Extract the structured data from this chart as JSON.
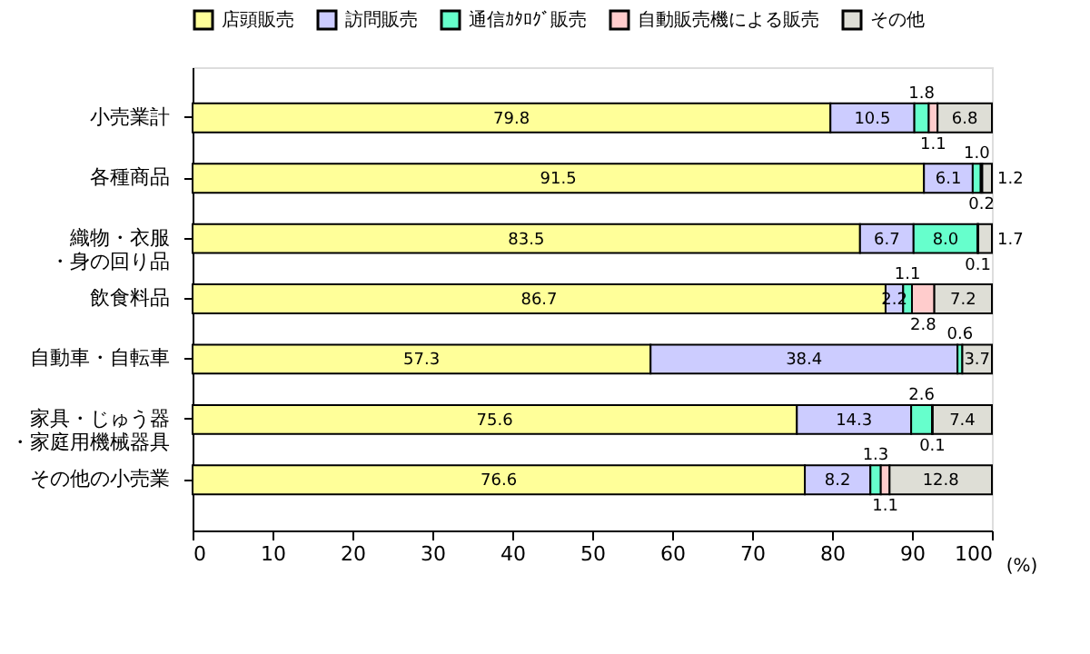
{
  "chart_data": {
    "type": "bar",
    "orientation": "horizontal",
    "stacked": true,
    "xlabel": "(%)",
    "categories": [
      "小売業計",
      "各種商品",
      "織物・衣服・身の回り品",
      "飲食料品",
      "自動車・自転車",
      "家具・じゅう器・家庭用機械器具",
      "その他の小売業"
    ],
    "series": [
      {
        "name": "店頭販売",
        "color": "#ffff99",
        "values": [
          79.8,
          91.5,
          83.5,
          86.7,
          57.3,
          75.6,
          76.6
        ],
        "value_labels": [
          "79.8",
          "91.5",
          "83.5",
          "86.7",
          "57.3",
          "75.6",
          "76.6"
        ]
      },
      {
        "name": "訪問販売",
        "color": "#ccccff",
        "values": [
          10.5,
          6.1,
          6.7,
          2.2,
          38.4,
          14.3,
          8.2
        ],
        "value_labels": [
          "10.5",
          "6.1",
          "6.7",
          "2.2",
          "38.4",
          "14.3",
          "8.2"
        ]
      },
      {
        "name": "通信ｶﾀﾛｸﾞ販売",
        "color": "#66ffcc",
        "values": [
          1.8,
          1.0,
          8.0,
          1.1,
          0.6,
          2.6,
          1.3
        ],
        "value_labels": [
          "1.8",
          "1.0",
          "8.0",
          "1.1",
          "0.6",
          "2.6",
          "1.3"
        ]
      },
      {
        "name": "自動販売機による販売",
        "color": "#ffcccc",
        "values": [
          1.1,
          0.2,
          0.1,
          2.8,
          null,
          0.1,
          1.1
        ],
        "value_labels": [
          "1.1",
          "0.2",
          "0.1",
          "2.8",
          null,
          "0.1",
          "1.1"
        ]
      },
      {
        "name": "その他",
        "color": "#deded6",
        "values": [
          6.8,
          1.2,
          1.7,
          7.2,
          3.7,
          7.4,
          12.8
        ],
        "value_labels": [
          "6.8",
          "1.2",
          "1.7",
          "7.2",
          "3.7",
          "7.4",
          "12.8"
        ]
      }
    ],
    "xlim": [
      0,
      100
    ],
    "xticks": [
      0,
      10,
      20,
      30,
      40,
      50,
      60,
      70,
      80,
      90,
      100
    ],
    "legend": "top",
    "grid": false
  }
}
